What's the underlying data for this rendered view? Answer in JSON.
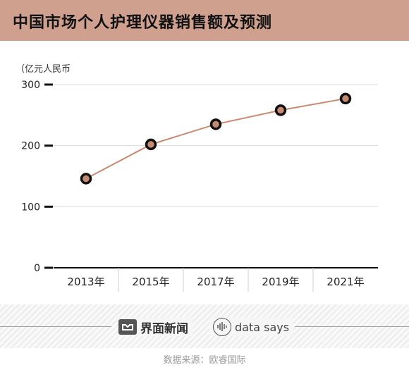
{
  "title": "中国市场个人护理仪器销售额及预测",
  "chart_data": {
    "type": "line",
    "ylabel": "（亿元人民币",
    "categories": [
      "2013年",
      "2015年",
      "2017年",
      "2019年",
      "2021年"
    ],
    "values": [
      146,
      202,
      235,
      258,
      277
    ],
    "ylim": [
      0,
      300
    ],
    "yticks": [
      0,
      100,
      200,
      300
    ],
    "grid": true,
    "colors": {
      "line": "#c9896f",
      "marker_fill": "#c48a72",
      "marker_ring": "#111111"
    }
  },
  "branding": {
    "publisher": "界面新闻",
    "tagline": "data says"
  },
  "source": "数据来源：欧睿国际"
}
